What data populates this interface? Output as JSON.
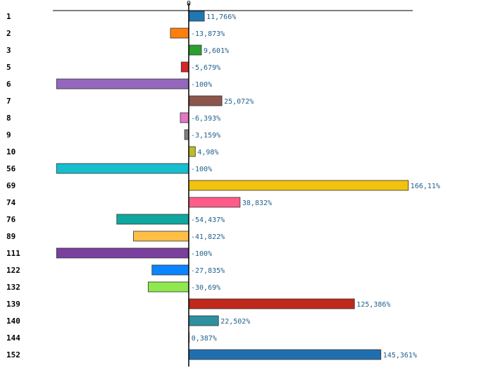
{
  "chart_data": {
    "type": "bar",
    "orientation": "horizontal",
    "title": "",
    "xlabel": "",
    "ylabel": "",
    "zero_tick_label": "0",
    "xlim": [
      -100,
      170
    ],
    "categories": [
      "1",
      "2",
      "3",
      "5",
      "6",
      "7",
      "8",
      "9",
      "10",
      "56",
      "69",
      "74",
      "76",
      "89",
      "111",
      "122",
      "132",
      "139",
      "140",
      "144",
      "152"
    ],
    "values": [
      11.766,
      -13.873,
      9.601,
      -5.679,
      -100,
      25.072,
      -6.393,
      -3.159,
      4.98,
      -100,
      166.11,
      38.832,
      -54.437,
      -41.822,
      -100,
      -27.835,
      -30.69,
      125.386,
      22.502,
      0.387,
      145.361
    ],
    "value_labels": [
      "11,766%",
      "-13,873%",
      "9,601%",
      "-5,679%",
      "-100%",
      "25,072%",
      "-6,393%",
      "-3,159%",
      "4,98%",
      "-100%",
      "166,11%",
      "38,832%",
      "-54,437%",
      "-41,822%",
      "-100%",
      "-27,835%",
      "-30,69%",
      "125,386%",
      "22,502%",
      "0,387%",
      "145,361%"
    ],
    "colors": [
      "#1f77b4",
      "#ff7f0e",
      "#2ca02c",
      "#d62728",
      "#9467bd",
      "#8c564b",
      "#e377c2",
      "#7f7f7f",
      "#bcbd22",
      "#17becf",
      "#f2c20f",
      "#ff5c8a",
      "#0fa89e",
      "#ffbf47",
      "#7b3f9e",
      "#0a84ff",
      "#90e850",
      "#c0281b",
      "#2e8fa0",
      "#d4a017",
      "#1f6fb0"
    ],
    "grid": false,
    "legend": "none"
  }
}
